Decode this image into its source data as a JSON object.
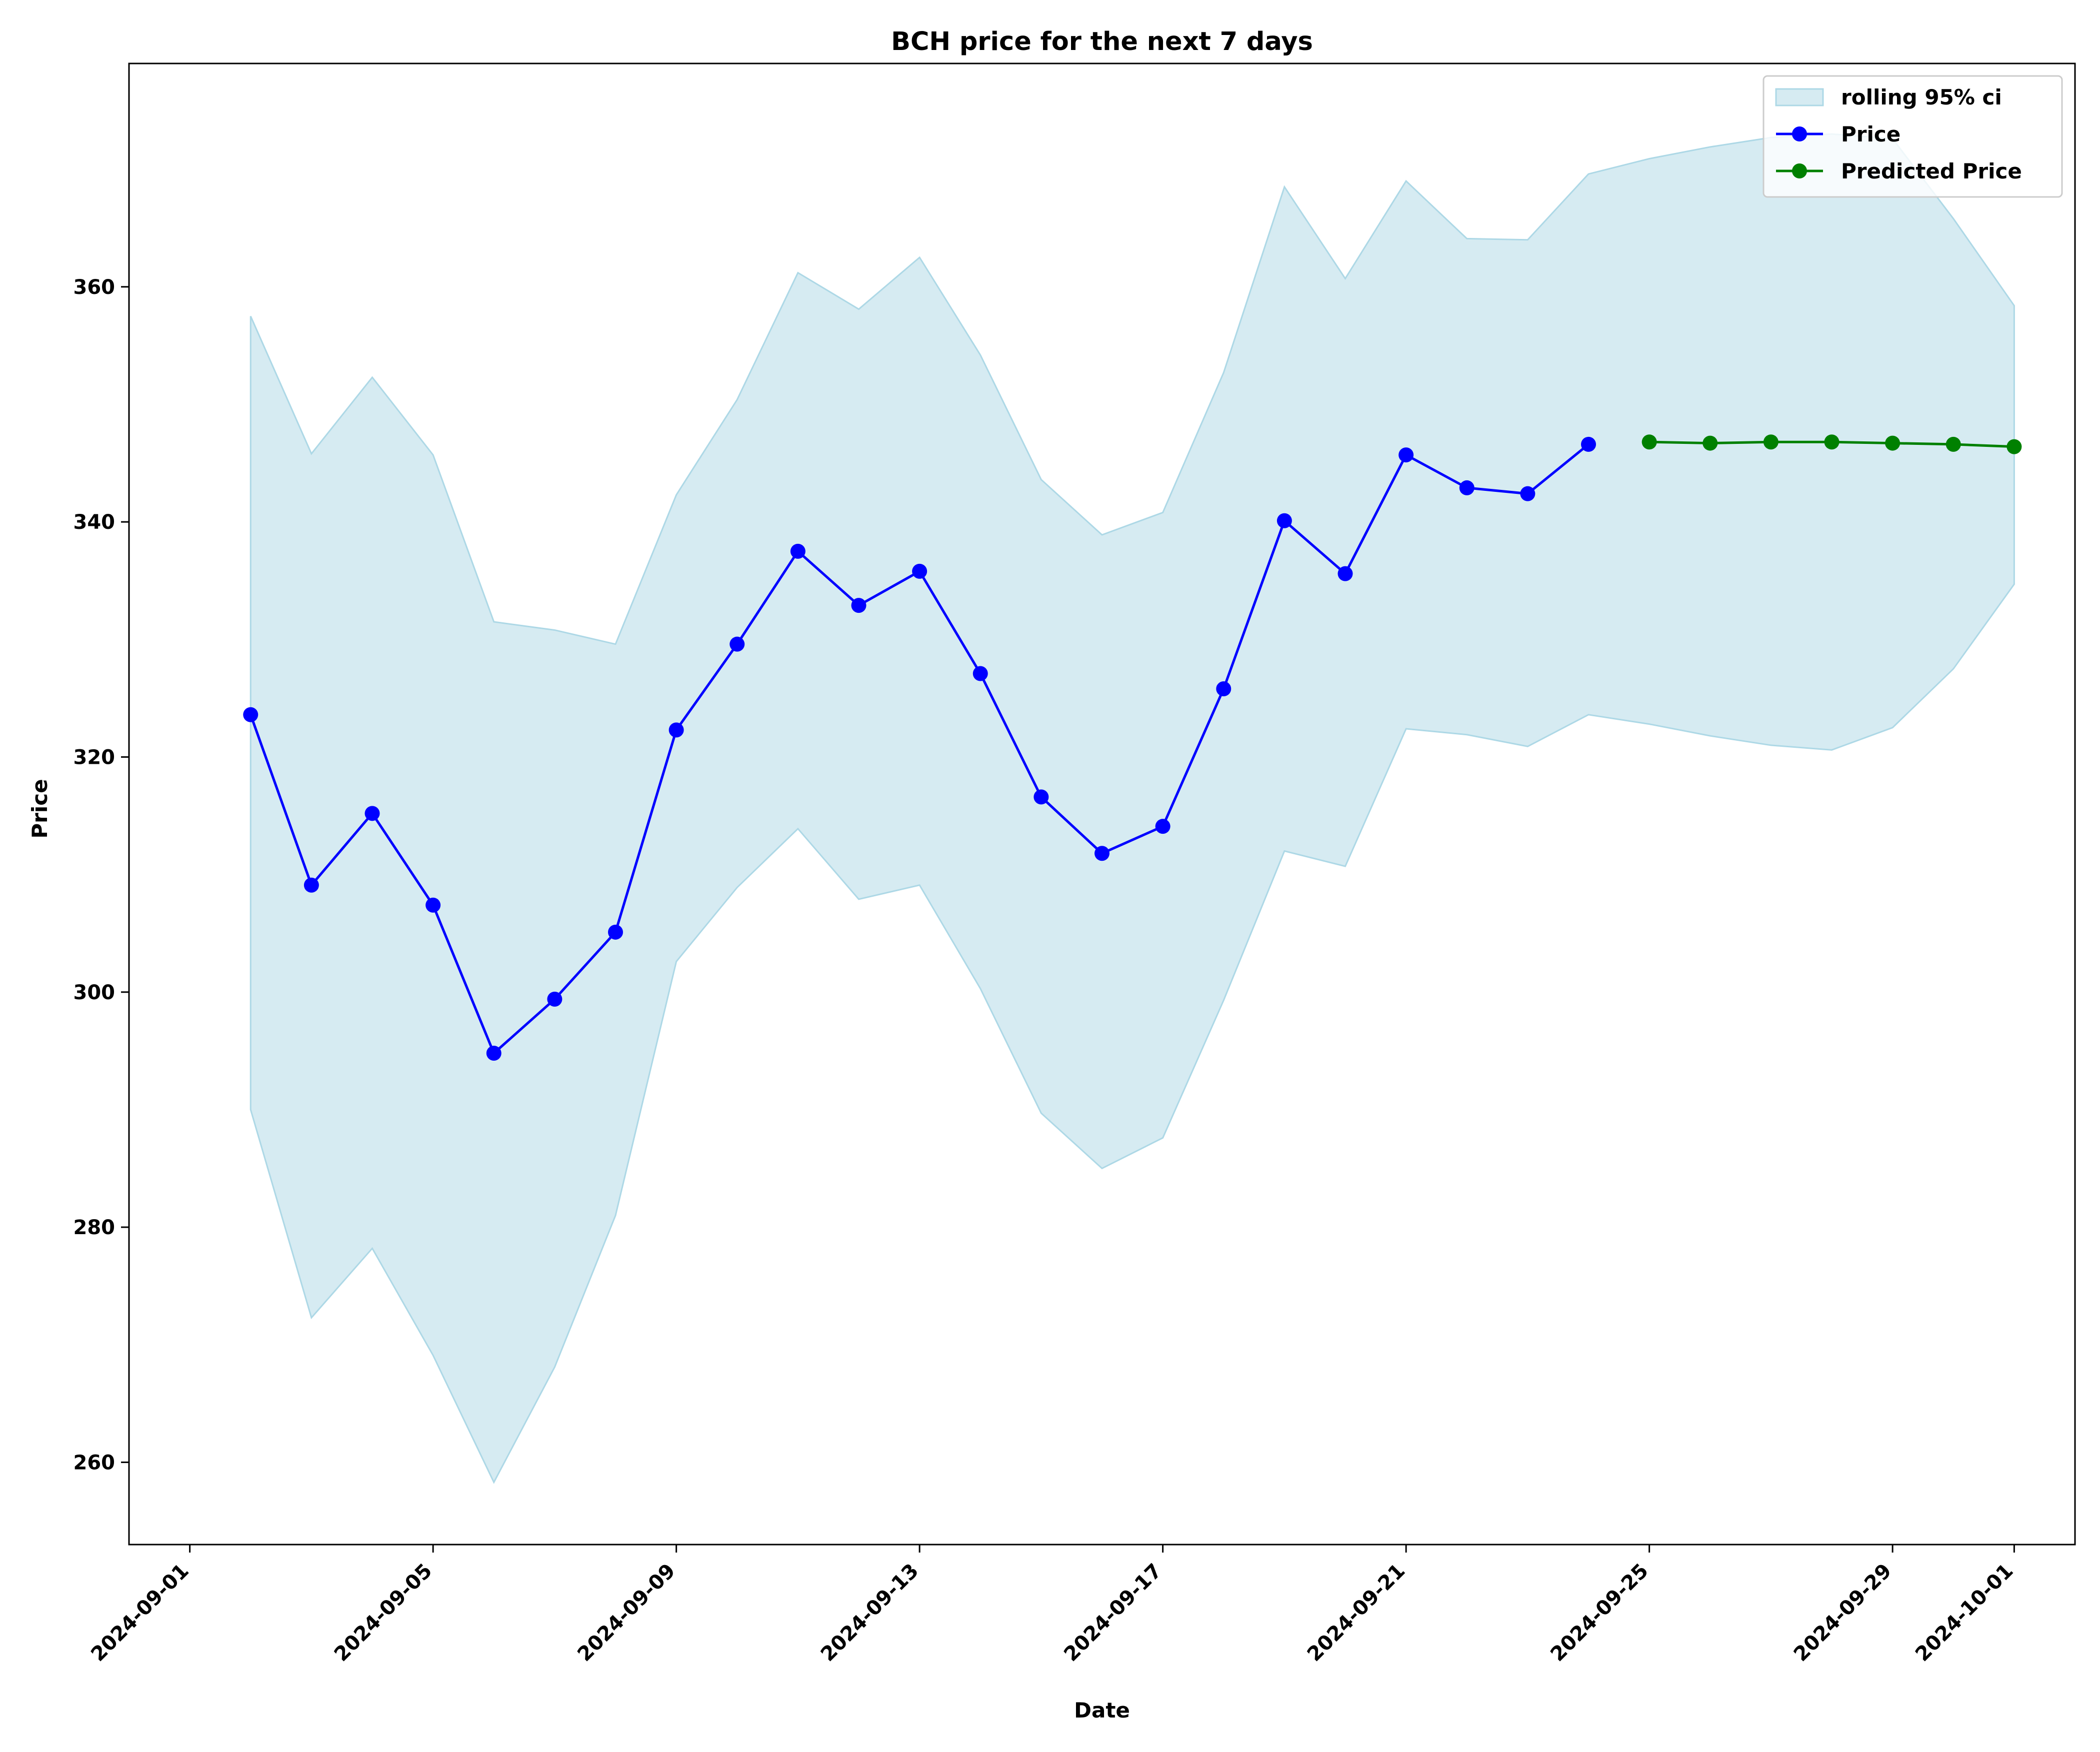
{
  "chart_data": {
    "type": "line",
    "title": "BCH price for the next 7 days",
    "xlabel": "Date",
    "ylabel": "Price",
    "xlim": [
      "2024-08-31",
      "2024-10-02"
    ],
    "ylim": [
      253,
      379
    ],
    "grid": false,
    "legend_position": "top-right",
    "x_ticks": [
      "2024-09-01",
      "2024-09-05",
      "2024-09-09",
      "2024-09-13",
      "2024-09-17",
      "2024-09-21",
      "2024-09-25",
      "2024-09-29",
      "2024-10-01"
    ],
    "y_ticks": [
      260,
      280,
      300,
      320,
      340,
      360
    ],
    "band": {
      "name": "rolling 95% ci",
      "color": "#add8e6",
      "x": [
        "2024-09-02",
        "2024-09-03",
        "2024-09-04",
        "2024-09-05",
        "2024-09-06",
        "2024-09-07",
        "2024-09-08",
        "2024-09-09",
        "2024-09-10",
        "2024-09-11",
        "2024-09-12",
        "2024-09-13",
        "2024-09-14",
        "2024-09-15",
        "2024-09-16",
        "2024-09-17",
        "2024-09-18",
        "2024-09-19",
        "2024-09-20",
        "2024-09-21",
        "2024-09-22",
        "2024-09-23",
        "2024-09-24",
        "2024-09-25",
        "2024-09-26",
        "2024-09-27",
        "2024-09-28",
        "2024-09-29",
        "2024-09-30",
        "2024-10-01"
      ],
      "upper": [
        357.5,
        345.8,
        352.3,
        345.7,
        331.5,
        330.8,
        329.6,
        342.3,
        350.4,
        361.2,
        358.1,
        362.5,
        354.2,
        343.6,
        338.9,
        340.8,
        352.7,
        368.5,
        360.7,
        369.0,
        364.1,
        364.0,
        369.6,
        370.9,
        371.9,
        372.7,
        373.0,
        372.6,
        365.8,
        358.4
      ],
      "lower": [
        290.0,
        272.3,
        278.2,
        269.1,
        258.3,
        268.1,
        281.0,
        302.6,
        308.9,
        313.9,
        307.9,
        309.1,
        300.3,
        289.7,
        285.0,
        287.6,
        299.3,
        312.0,
        310.7,
        322.4,
        321.9,
        320.9,
        323.6,
        322.8,
        321.8,
        321.0,
        320.6,
        322.5,
        327.5,
        334.7
      ]
    },
    "series": [
      {
        "name": "Price",
        "color": "#0000ff",
        "x": [
          "2024-09-02",
          "2024-09-03",
          "2024-09-04",
          "2024-09-05",
          "2024-09-06",
          "2024-09-07",
          "2024-09-08",
          "2024-09-09",
          "2024-09-10",
          "2024-09-11",
          "2024-09-12",
          "2024-09-13",
          "2024-09-14",
          "2024-09-15",
          "2024-09-16",
          "2024-09-17",
          "2024-09-18",
          "2024-09-19",
          "2024-09-20",
          "2024-09-21",
          "2024-09-22",
          "2024-09-23",
          "2024-09-24"
        ],
        "y": [
          323.6,
          309.1,
          315.2,
          307.4,
          294.8,
          299.4,
          305.1,
          322.3,
          329.6,
          337.5,
          332.9,
          335.8,
          327.1,
          316.6,
          311.8,
          314.1,
          325.8,
          340.1,
          335.6,
          345.7,
          342.9,
          342.4,
          346.6
        ]
      },
      {
        "name": "Predicted Price",
        "color": "#008000",
        "x": [
          "2024-09-25",
          "2024-09-26",
          "2024-09-27",
          "2024-09-28",
          "2024-09-29",
          "2024-09-30",
          "2024-10-01"
        ],
        "y": [
          346.8,
          346.7,
          346.8,
          346.8,
          346.7,
          346.6,
          346.4
        ]
      }
    ]
  }
}
